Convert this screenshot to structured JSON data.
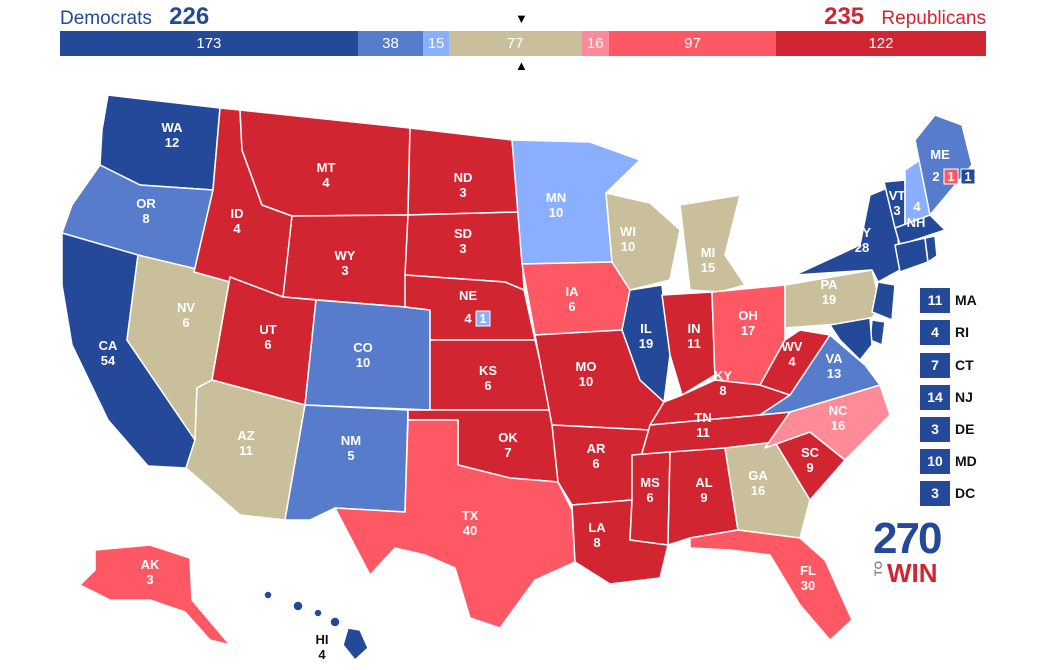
{
  "header": {
    "dem_label": "Democrats",
    "dem_total": "226",
    "rep_total": "235",
    "rep_label": "Republicans",
    "marker_top": "▼",
    "marker_bottom": "▲"
  },
  "colors": {
    "safe_dem": "#244999",
    "likely_dem": "#577ccc",
    "leans_dem": "#8aafff",
    "tossup": "#c9c09b",
    "leans_rep": "#ff8b98",
    "likely_rep": "#ff5865",
    "safe_rep": "#d22532"
  },
  "bar_segments": [
    {
      "value": 173,
      "category": "safe_dem"
    },
    {
      "value": 38,
      "category": "likely_dem"
    },
    {
      "value": 15,
      "category": "leans_dem"
    },
    {
      "value": 77,
      "category": "tossup"
    },
    {
      "value": 16,
      "category": "leans_rep"
    },
    {
      "value": 97,
      "category": "likely_rep"
    },
    {
      "value": 122,
      "category": "safe_rep"
    }
  ],
  "states": {
    "WA": {
      "name": "WA",
      "votes": "12",
      "category": "safe_dem"
    },
    "OR": {
      "name": "OR",
      "votes": "8",
      "category": "likely_dem"
    },
    "CA": {
      "name": "CA",
      "votes": "54",
      "category": "safe_dem"
    },
    "NV": {
      "name": "NV",
      "votes": "6",
      "category": "tossup"
    },
    "ID": {
      "name": "ID",
      "votes": "4",
      "category": "safe_rep"
    },
    "MT": {
      "name": "MT",
      "votes": "4",
      "category": "safe_rep"
    },
    "WY": {
      "name": "WY",
      "votes": "3",
      "category": "safe_rep"
    },
    "UT": {
      "name": "UT",
      "votes": "6",
      "category": "safe_rep"
    },
    "AZ": {
      "name": "AZ",
      "votes": "11",
      "category": "tossup"
    },
    "CO": {
      "name": "CO",
      "votes": "10",
      "category": "likely_dem"
    },
    "NM": {
      "name": "NM",
      "votes": "5",
      "category": "likely_dem"
    },
    "ND": {
      "name": "ND",
      "votes": "3",
      "category": "safe_rep"
    },
    "SD": {
      "name": "SD",
      "votes": "3",
      "category": "safe_rep"
    },
    "NE": {
      "name": "NE",
      "votes": "4",
      "category": "safe_rep"
    },
    "KS": {
      "name": "KS",
      "votes": "6",
      "category": "safe_rep"
    },
    "OK": {
      "name": "OK",
      "votes": "7",
      "category": "safe_rep"
    },
    "TX": {
      "name": "TX",
      "votes": "40",
      "category": "likely_rep"
    },
    "MN": {
      "name": "MN",
      "votes": "10",
      "category": "leans_dem"
    },
    "IA": {
      "name": "IA",
      "votes": "6",
      "category": "likely_rep"
    },
    "MO": {
      "name": "MO",
      "votes": "10",
      "category": "safe_rep"
    },
    "AR": {
      "name": "AR",
      "votes": "6",
      "category": "safe_rep"
    },
    "LA": {
      "name": "LA",
      "votes": "8",
      "category": "safe_rep"
    },
    "WI": {
      "name": "WI",
      "votes": "10",
      "category": "tossup"
    },
    "IL": {
      "name": "IL",
      "votes": "19",
      "category": "safe_dem"
    },
    "MI": {
      "name": "MI",
      "votes": "15",
      "category": "tossup"
    },
    "IN": {
      "name": "IN",
      "votes": "11",
      "category": "safe_rep"
    },
    "OH": {
      "name": "OH",
      "votes": "17",
      "category": "likely_rep"
    },
    "KY": {
      "name": "KY",
      "votes": "8",
      "category": "safe_rep"
    },
    "TN": {
      "name": "TN",
      "votes": "11",
      "category": "safe_rep"
    },
    "MS": {
      "name": "MS",
      "votes": "6",
      "category": "safe_rep"
    },
    "AL": {
      "name": "AL",
      "votes": "9",
      "category": "safe_rep"
    },
    "GA": {
      "name": "GA",
      "votes": "16",
      "category": "tossup"
    },
    "FL": {
      "name": "FL",
      "votes": "30",
      "category": "likely_rep"
    },
    "SC": {
      "name": "SC",
      "votes": "9",
      "category": "safe_rep"
    },
    "NC": {
      "name": "NC",
      "votes": "16",
      "category": "leans_rep"
    },
    "VA": {
      "name": "VA",
      "votes": "13",
      "category": "likely_dem"
    },
    "WV": {
      "name": "WV",
      "votes": "4",
      "category": "safe_rep"
    },
    "PA": {
      "name": "PA",
      "votes": "19",
      "category": "tossup"
    },
    "NY": {
      "name": "NY",
      "votes": "28",
      "category": "safe_dem"
    },
    "VT": {
      "name": "VT",
      "votes": "3",
      "category": "safe_dem"
    },
    "NH": {
      "name": "NH",
      "votes": "4",
      "category": "leans_dem"
    },
    "ME": {
      "name": "ME",
      "votes": "2",
      "category": "likely_dem"
    },
    "AK": {
      "name": "AK",
      "votes": "3",
      "category": "likely_rep"
    },
    "HI": {
      "name": "HI",
      "votes": "4",
      "category": "safe_dem"
    }
  },
  "split_districts": {
    "NE2": {
      "votes": "1",
      "category": "leans_dem"
    },
    "ME1": {
      "votes": "1",
      "category": "safe_dem"
    },
    "ME2": {
      "votes": "1",
      "category": "likely_rep"
    }
  },
  "small_states": [
    {
      "name": "MA",
      "votes": "11",
      "category": "safe_dem"
    },
    {
      "name": "RI",
      "votes": "4",
      "category": "safe_dem"
    },
    {
      "name": "CT",
      "votes": "7",
      "category": "safe_dem"
    },
    {
      "name": "NJ",
      "votes": "14",
      "category": "safe_dem"
    },
    {
      "name": "DE",
      "votes": "3",
      "category": "safe_dem"
    },
    {
      "name": "MD",
      "votes": "10",
      "category": "safe_dem"
    },
    {
      "name": "DC",
      "votes": "3",
      "category": "safe_dem"
    }
  ],
  "logo": {
    "number": "270",
    "to": "TO",
    "win": "WIN"
  }
}
